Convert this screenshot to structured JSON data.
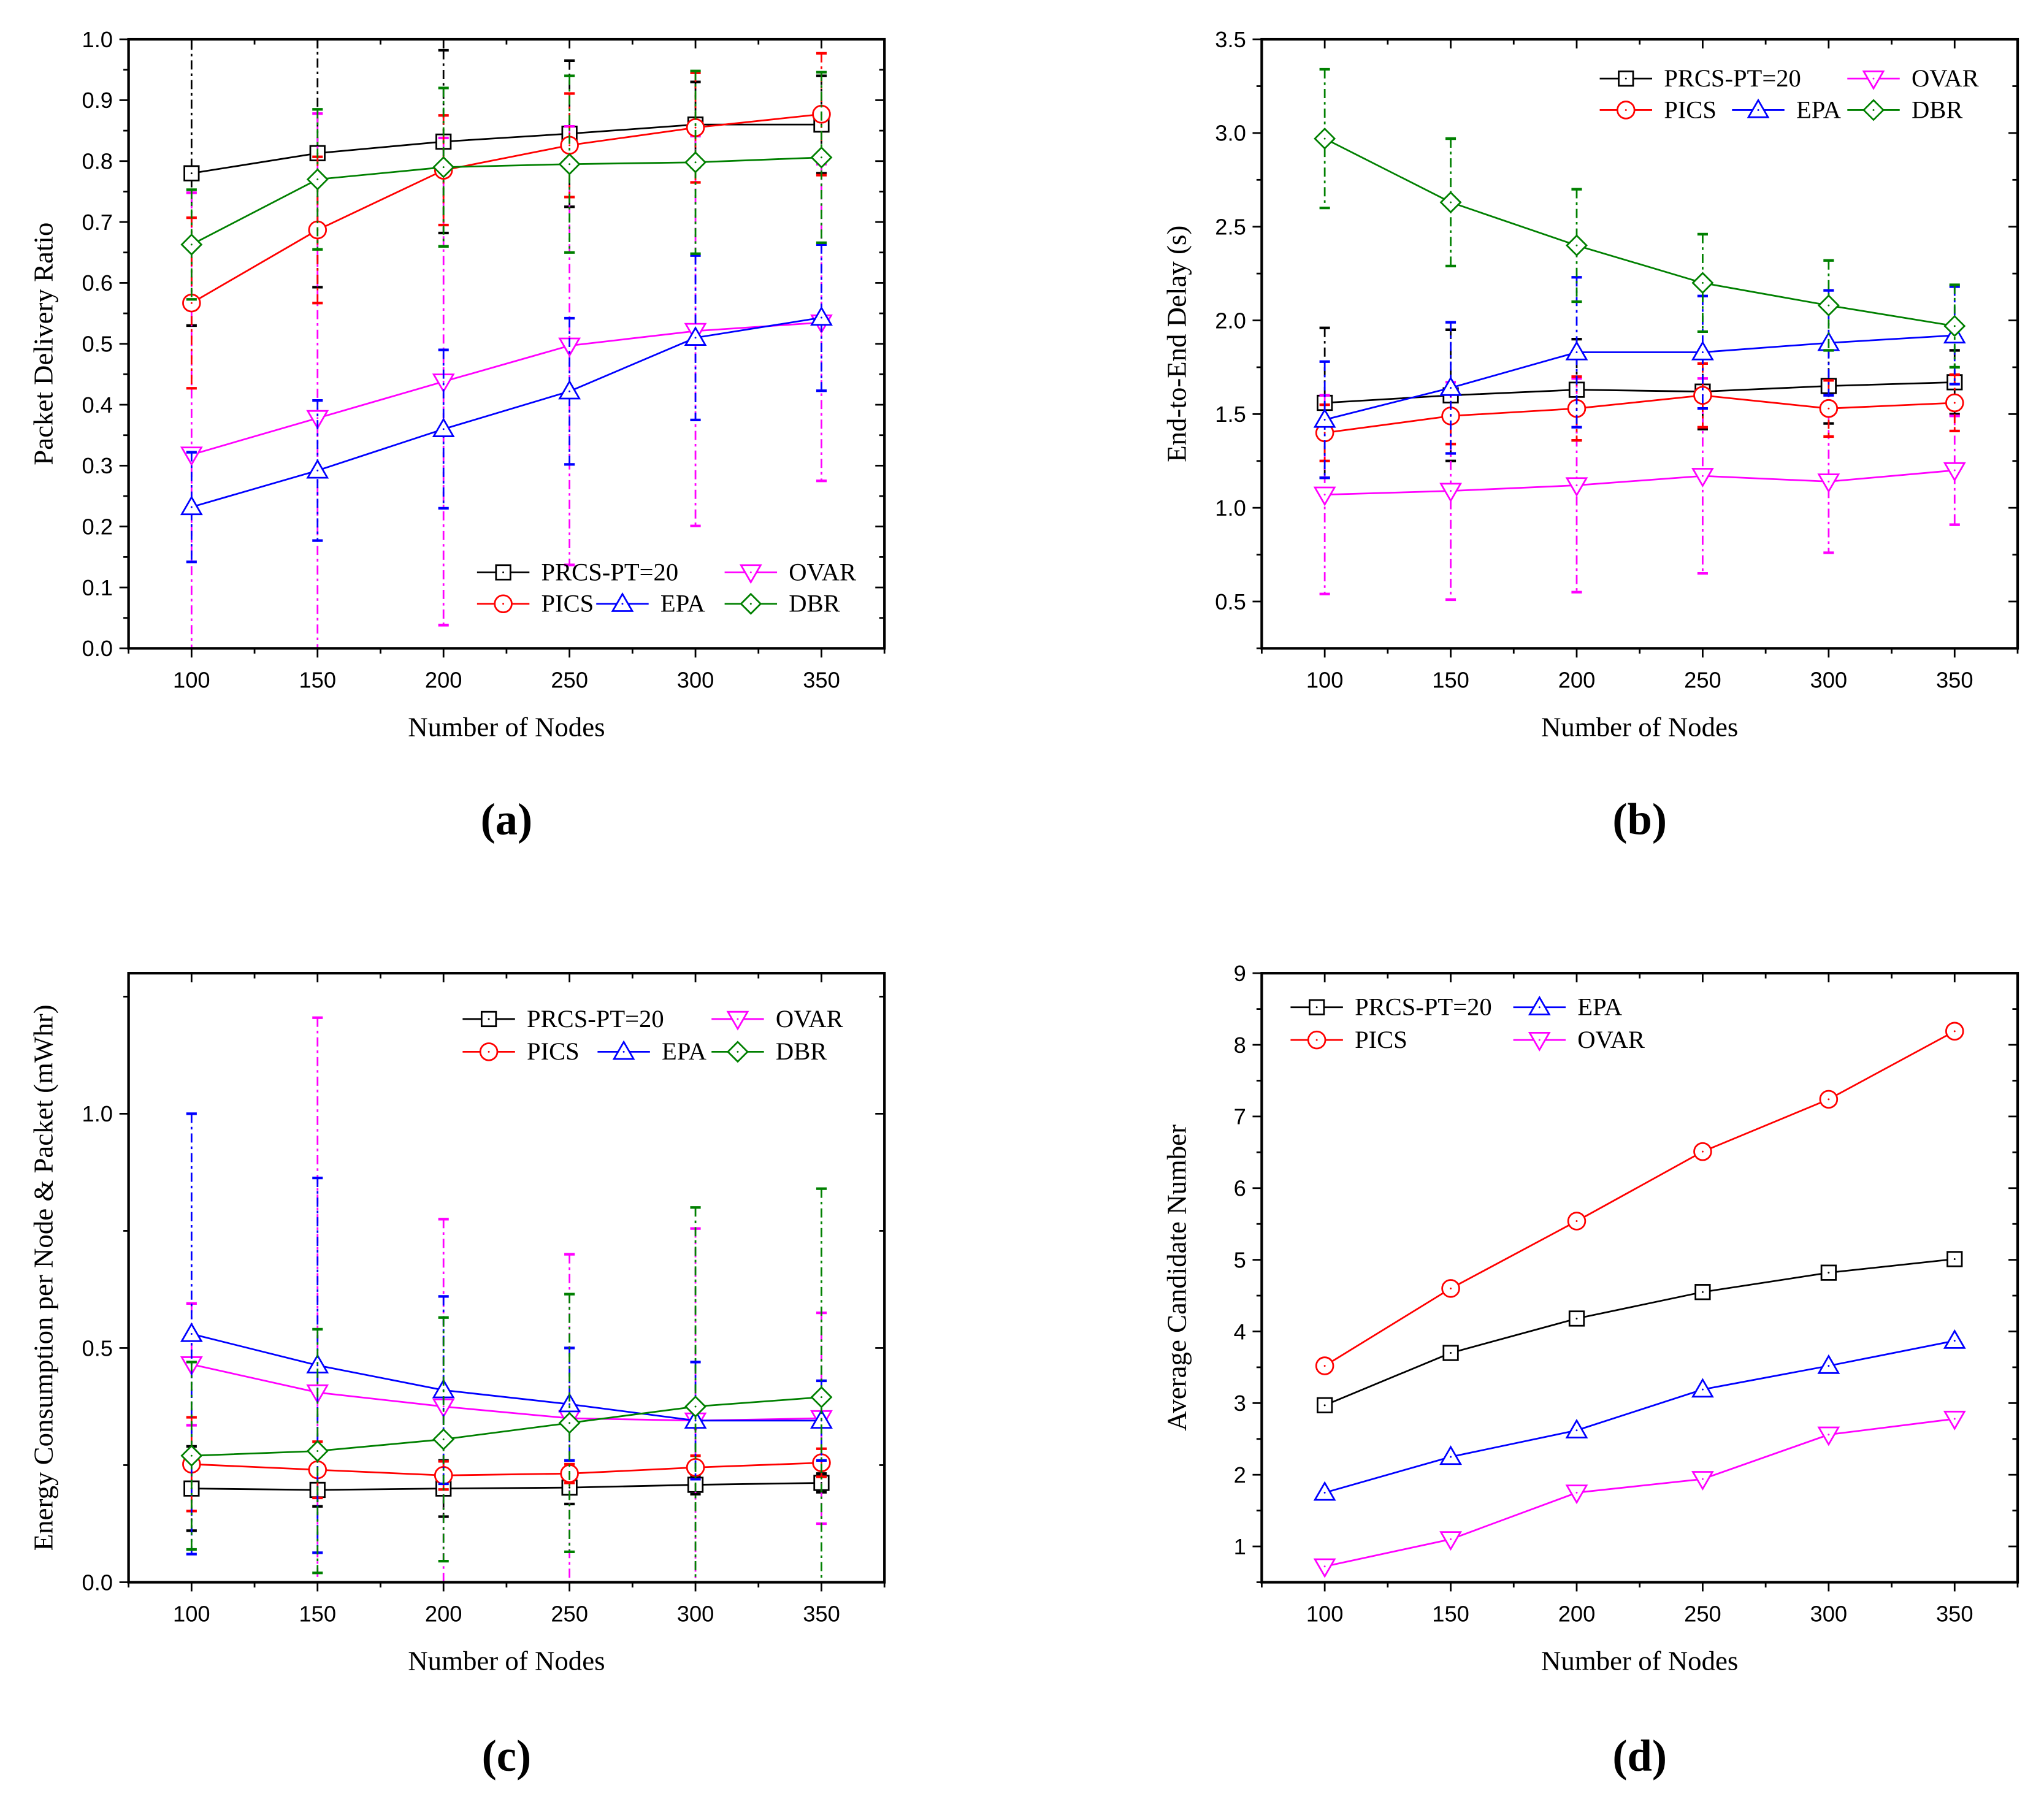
{
  "chart_data": [
    {
      "panel": "(a)",
      "type": "line",
      "xlabel": "Number of Nodes",
      "ylabel": "Packet Delivery Ratio",
      "x": [
        100,
        150,
        200,
        250,
        300,
        350
      ],
      "xlim": [
        75,
        375
      ],
      "ylim": [
        0,
        1.0
      ],
      "yticks": [
        "0.0",
        "0.1",
        "0.2",
        "0.3",
        "0.4",
        "0.5",
        "0.6",
        "0.7",
        "0.8",
        "0.9",
        "1.0"
      ],
      "legend": "bottom-right",
      "series": [
        {
          "name": "PRCS-PT=20",
          "color": "#000000",
          "marker": "square",
          "values": [
            0.78,
            0.813,
            0.832,
            0.845,
            0.86,
            0.86
          ],
          "error": [
            0.25,
            0.22,
            0.15,
            0.12,
            0.07,
            0.08
          ]
        },
        {
          "name": "OVAR",
          "color": "#ff00ff",
          "marker": "triangle-down",
          "values": [
            0.318,
            0.378,
            0.438,
            0.497,
            0.521,
            0.535
          ],
          "error": [
            0.43,
            0.5,
            0.4,
            0.36,
            0.32,
            0.26
          ]
        },
        {
          "name": "PICS",
          "color": "#ff0000",
          "marker": "circle",
          "values": [
            0.567,
            0.687,
            0.785,
            0.826,
            0.855,
            0.877
          ],
          "error": [
            0.14,
            0.12,
            0.09,
            0.085,
            0.09,
            0.1
          ]
        },
        {
          "name": "EPA",
          "color": "#0000ff",
          "marker": "triangle-up",
          "values": [
            0.232,
            0.292,
            0.36,
            0.422,
            0.51,
            0.543
          ],
          "error": [
            0.09,
            0.115,
            0.13,
            0.12,
            0.135,
            0.12
          ]
        },
        {
          "name": "DBR",
          "color": "#008000",
          "marker": "diamond",
          "values": [
            0.663,
            0.77,
            0.79,
            0.795,
            0.798,
            0.806
          ],
          "error": [
            0.09,
            0.115,
            0.13,
            0.145,
            0.15,
            0.14
          ]
        }
      ]
    },
    {
      "panel": "(b)",
      "type": "line",
      "xlabel": "Number of Nodes",
      "ylabel": "End-to-End Delay (s)",
      "x": [
        100,
        150,
        200,
        250,
        300,
        350
      ],
      "xlim": [
        75,
        375
      ],
      "ylim": [
        0.25,
        3.5
      ],
      "yticks": [
        "0.5",
        "1.0",
        "1.5",
        "2.0",
        "2.5",
        "3.0",
        "3.5"
      ],
      "legend": "top-right",
      "series": [
        {
          "name": "PRCS-PT=20",
          "color": "#000000",
          "marker": "square",
          "values": [
            1.56,
            1.6,
            1.63,
            1.62,
            1.65,
            1.67
          ],
          "error": [
            0.4,
            0.35,
            0.27,
            0.2,
            0.2,
            0.17
          ]
        },
        {
          "name": "OVAR",
          "color": "#ff00ff",
          "marker": "triangle-down",
          "values": [
            1.07,
            1.09,
            1.12,
            1.17,
            1.14,
            1.2
          ],
          "error": [
            0.53,
            0.58,
            0.57,
            0.52,
            0.38,
            0.29
          ]
        },
        {
          "name": "PICS",
          "color": "#ff0000",
          "marker": "circle",
          "values": [
            1.4,
            1.49,
            1.53,
            1.6,
            1.53,
            1.56
          ],
          "error": [
            0.15,
            0.15,
            0.17,
            0.17,
            0.15,
            0.15
          ]
        },
        {
          "name": "EPA",
          "color": "#0000ff",
          "marker": "triangle-up",
          "values": [
            1.47,
            1.64,
            1.83,
            1.83,
            1.88,
            1.92
          ],
          "error": [
            0.31,
            0.35,
            0.4,
            0.3,
            0.28,
            0.26
          ]
        },
        {
          "name": "DBR",
          "color": "#008000",
          "marker": "diamond",
          "values": [
            2.97,
            2.63,
            2.4,
            2.2,
            2.08,
            1.97
          ],
          "error": [
            0.37,
            0.34,
            0.3,
            0.26,
            0.24,
            0.22
          ]
        }
      ]
    },
    {
      "panel": "(c)",
      "type": "line",
      "xlabel": "Number of Nodes",
      "ylabel": "Energy Consumption per Node & Packet (mWhr)",
      "x": [
        100,
        150,
        200,
        250,
        300,
        350
      ],
      "xlim": [
        75,
        375
      ],
      "ylim": [
        0,
        1.3
      ],
      "yticks": [
        "0.0",
        "0.5",
        "1.0"
      ],
      "legend": "top-right",
      "series": [
        {
          "name": "PRCS-PT=20",
          "color": "#000000",
          "marker": "square",
          "values": [
            0.2,
            0.197,
            0.2,
            0.202,
            0.208,
            0.212
          ],
          "error": [
            0.09,
            0.035,
            0.06,
            0.035,
            0.02,
            0.02
          ]
        },
        {
          "name": "OVAR",
          "color": "#ff00ff",
          "marker": "triangle-down",
          "values": [
            0.465,
            0.405,
            0.375,
            0.35,
            0.345,
            0.35
          ],
          "error": [
            0.13,
            0.8,
            0.4,
            0.35,
            0.41,
            0.225
          ]
        },
        {
          "name": "PICS",
          "color": "#ff0000",
          "marker": "circle",
          "values": [
            0.252,
            0.24,
            0.228,
            0.232,
            0.245,
            0.255
          ],
          "error": [
            0.1,
            0.06,
            0.03,
            0.02,
            0.025,
            0.03
          ]
        },
        {
          "name": "EPA",
          "color": "#0000ff",
          "marker": "triangle-up",
          "values": [
            0.53,
            0.463,
            0.41,
            0.38,
            0.345,
            0.345
          ],
          "error": [
            0.47,
            0.4,
            0.2,
            0.12,
            0.125,
            0.085
          ]
        },
        {
          "name": "DBR",
          "color": "#008000",
          "marker": "diamond",
          "values": [
            0.27,
            0.28,
            0.305,
            0.34,
            0.375,
            0.395
          ],
          "error": [
            0.2,
            0.26,
            0.26,
            0.275,
            0.425,
            0.445
          ]
        }
      ]
    },
    {
      "panel": "(d)",
      "type": "line",
      "xlabel": "Number of Nodes",
      "ylabel": "Average Candidate Number",
      "x": [
        100,
        150,
        200,
        250,
        300,
        350
      ],
      "xlim": [
        75,
        375
      ],
      "ylim": [
        0.5,
        9
      ],
      "yticks": [
        "1",
        "2",
        "3",
        "4",
        "5",
        "6",
        "7",
        "8",
        "9"
      ],
      "legend": "top-left",
      "series": [
        {
          "name": "PRCS-PT=20",
          "color": "#000000",
          "marker": "square",
          "values": [
            2.97,
            3.7,
            4.18,
            4.55,
            4.82,
            5.01
          ]
        },
        {
          "name": "EPA",
          "color": "#0000ff",
          "marker": "triangle-up",
          "values": [
            1.75,
            2.25,
            2.62,
            3.19,
            3.52,
            3.87
          ]
        },
        {
          "name": "PICS",
          "color": "#ff0000",
          "marker": "circle",
          "values": [
            3.52,
            4.6,
            5.54,
            6.51,
            7.24,
            8.19
          ]
        },
        {
          "name": "OVAR",
          "color": "#ff00ff",
          "marker": "triangle-down",
          "values": [
            0.72,
            1.1,
            1.75,
            1.94,
            2.56,
            2.78
          ]
        }
      ]
    }
  ]
}
